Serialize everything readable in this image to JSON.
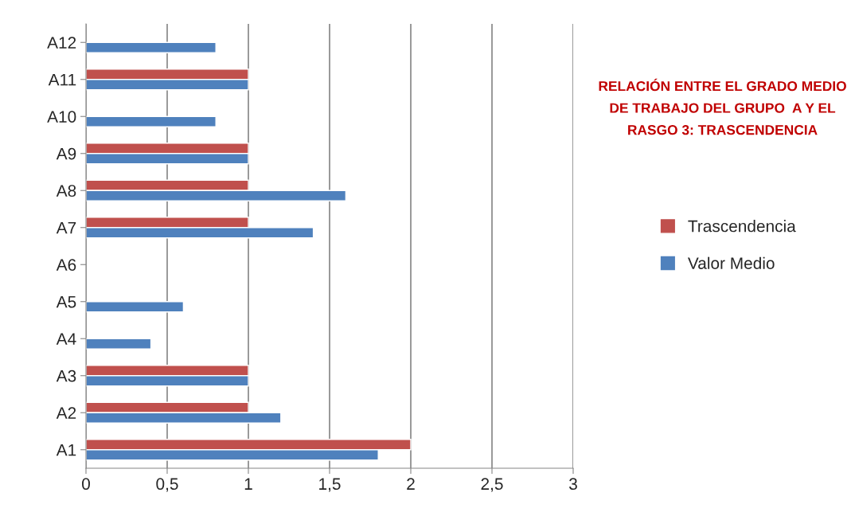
{
  "chart_data": {
    "type": "bar",
    "orientation": "horizontal",
    "title": "RELACIÓN ENTRE EL GRADO MEDIO DE TRABAJO DEL GRUPO  A Y EL RASGO 3: TRASCENDENCIA",
    "categories": [
      "A12",
      "A11",
      "A10",
      "A9",
      "A8",
      "A7",
      "A6",
      "A5",
      "A4",
      "A3",
      "A2",
      "A1"
    ],
    "series": [
      {
        "name": "Trascendencia",
        "color": "#c0504d",
        "values": [
          null,
          1,
          null,
          1,
          1,
          1,
          null,
          null,
          null,
          1,
          1,
          2
        ]
      },
      {
        "name": "Valor Medio",
        "color": "#4f81bd",
        "values": [
          0.8,
          1,
          0.8,
          1,
          1.6,
          1.4,
          null,
          0.6,
          0.4,
          1,
          1.2,
          1.8
        ]
      }
    ],
    "xlim": [
      0,
      3
    ],
    "xticks": [
      0,
      {
        "value": 0.5,
        "label": "0,5"
      },
      1,
      {
        "value": 1.5,
        "label": "1,5"
      },
      2,
      {
        "value": 2.5,
        "label": "2,5"
      },
      3
    ],
    "grid": "x",
    "legend": "right"
  }
}
